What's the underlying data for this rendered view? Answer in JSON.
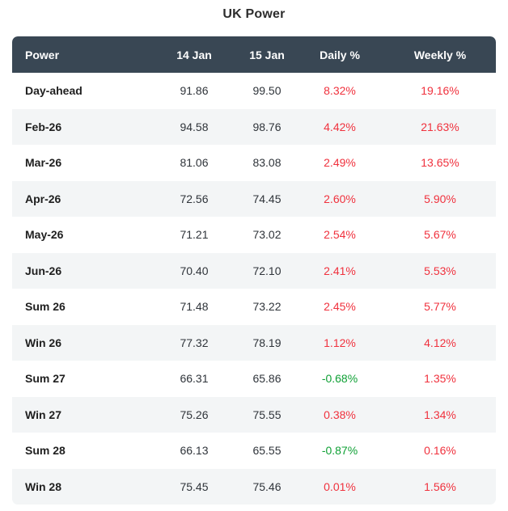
{
  "title": "UK Power",
  "colors": {
    "header_bg": "#394754",
    "header_text": "#ffffff",
    "stripe_bg": "#f3f5f6",
    "row_bg": "#ffffff",
    "label_text": "#1f1f1f",
    "value_text": "#2f343a",
    "positive_red": "#f0313d",
    "negative_green": "#0fa035",
    "title_text": "#2d2d2d"
  },
  "chart_data": {
    "type": "table",
    "title": "UK Power",
    "columns": [
      "Power",
      "14 Jan",
      "15 Jan",
      "Daily %",
      "Weekly %"
    ],
    "rows": [
      {
        "cells": [
          "Day-ahead",
          "91.86",
          "99.50",
          "8.32%",
          "19.16%"
        ]
      },
      {
        "cells": [
          "Feb-26",
          "94.58",
          "98.76",
          "4.42%",
          "21.63%"
        ]
      },
      {
        "cells": [
          "Mar-26",
          "81.06",
          "83.08",
          "2.49%",
          "13.65%"
        ]
      },
      {
        "cells": [
          "Apr-26",
          "72.56",
          "74.45",
          "2.60%",
          "5.90%"
        ]
      },
      {
        "cells": [
          "May-26",
          "71.21",
          "73.02",
          "2.54%",
          "5.67%"
        ]
      },
      {
        "cells": [
          "Jun-26",
          "70.40",
          "72.10",
          "2.41%",
          "5.53%"
        ]
      },
      {
        "cells": [
          "Sum 26",
          "71.48",
          "73.22",
          "2.45%",
          "5.77%"
        ]
      },
      {
        "cells": [
          "Win 26",
          "77.32",
          "78.19",
          "1.12%",
          "4.12%"
        ]
      },
      {
        "cells": [
          "Sum 27",
          "66.31",
          "65.86",
          "-0.68%",
          "1.35%"
        ]
      },
      {
        "cells": [
          "Win 27",
          "75.26",
          "75.55",
          "0.38%",
          "1.34%"
        ]
      },
      {
        "cells": [
          "Sum 28",
          "66.13",
          "65.55",
          "-0.87%",
          "0.16%"
        ]
      },
      {
        "cells": [
          "Win 28",
          "75.45",
          "75.46",
          "0.01%",
          "1.56%"
        ]
      }
    ]
  }
}
